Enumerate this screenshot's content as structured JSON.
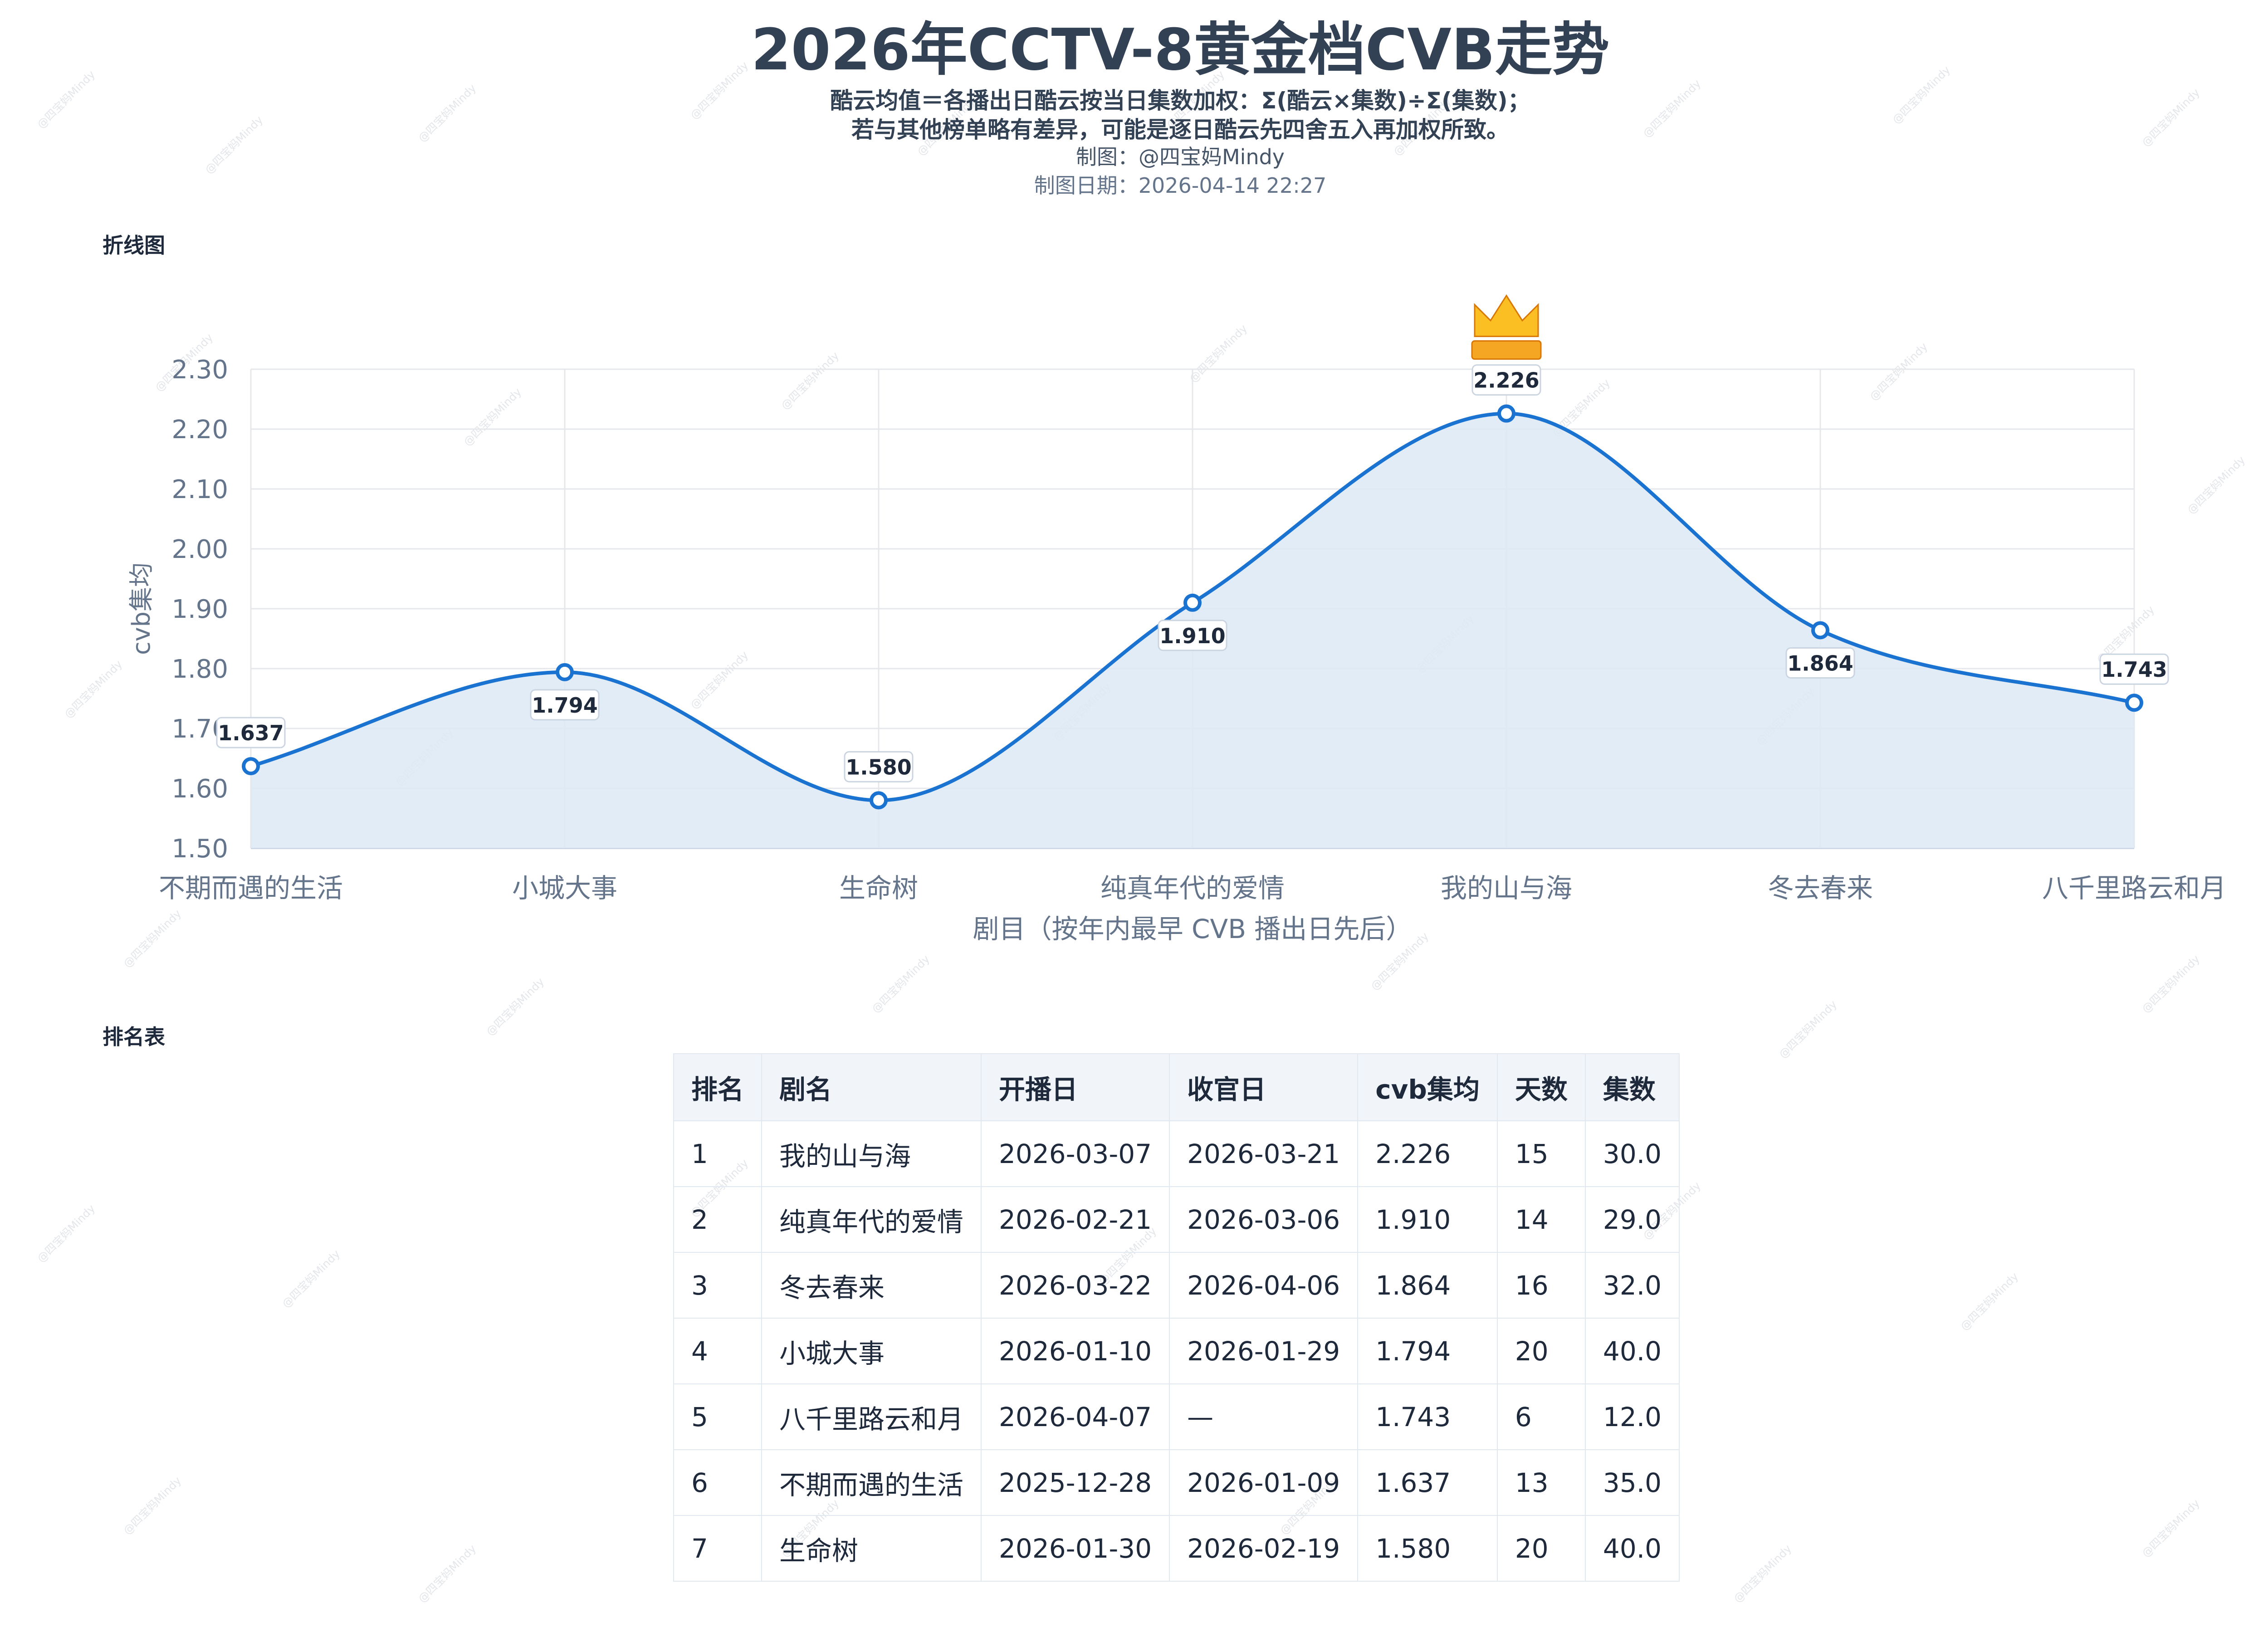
{
  "header": {
    "title": "2026年CCTV-8黄金档CVB走势",
    "subtitle_line1": "酷云均值＝各播出日酷云按当日集数加权：Σ(酷云×集数)÷Σ(集数)；",
    "subtitle_line2": "若与其他榜单略有差异，可能是逐日酷云先四舍五入再加权所致。",
    "credit": "制图：@四宝妈Mindy",
    "date": "制图日期：2026-04-14 22:27"
  },
  "sections": {
    "chart_label": "折线图",
    "table_label": "排名表"
  },
  "watermark": "@四宝妈Mindy",
  "chart_data": {
    "type": "line",
    "area_fill": true,
    "smooth": true,
    "categories": [
      "不期而遇的生活",
      "小城大事",
      "生命树",
      "纯真年代的爱情",
      "我的山与海",
      "冬去春来",
      "八千里路云和月"
    ],
    "values": [
      1.637,
      1.794,
      1.58,
      1.91,
      2.226,
      1.864,
      1.743
    ],
    "data_labels": [
      "1.637",
      "1.794",
      "1.580",
      "1.910",
      "2.226",
      "1.864",
      "1.743"
    ],
    "ylabel": "cvb集均",
    "xlabel": "剧目（按年内最早 CVB 播出日先后）",
    "ylim": [
      1.5,
      2.3
    ],
    "yticks": [
      "1.50",
      "1.60",
      "1.70",
      "1.80",
      "1.90",
      "2.00",
      "2.10",
      "2.20",
      "2.30"
    ],
    "grid": true,
    "max_marker": "crown-icon",
    "colors": {
      "line": "#1a73d1",
      "fill": "#dde9f6",
      "crown": "#f5a623"
    }
  },
  "table": {
    "headers": [
      "排名",
      "剧名",
      "开播日",
      "收官日",
      "cvb集均",
      "天数",
      "集数"
    ],
    "rows": [
      [
        "1",
        "我的山与海",
        "2026-03-07",
        "2026-03-21",
        "2.226",
        "15",
        "30.0"
      ],
      [
        "2",
        "纯真年代的爱情",
        "2026-02-21",
        "2026-03-06",
        "1.910",
        "14",
        "29.0"
      ],
      [
        "3",
        "冬去春来",
        "2026-03-22",
        "2026-04-06",
        "1.864",
        "16",
        "32.0"
      ],
      [
        "4",
        "小城大事",
        "2026-01-10",
        "2026-01-29",
        "1.794",
        "20",
        "40.0"
      ],
      [
        "5",
        "八千里路云和月",
        "2026-04-07",
        "—",
        "1.743",
        "6",
        "12.0"
      ],
      [
        "6",
        "不期而遇的生活",
        "2025-12-28",
        "2026-01-09",
        "1.637",
        "13",
        "35.0"
      ],
      [
        "7",
        "生命树",
        "2026-01-30",
        "2026-02-19",
        "1.580",
        "20",
        "40.0"
      ]
    ]
  }
}
